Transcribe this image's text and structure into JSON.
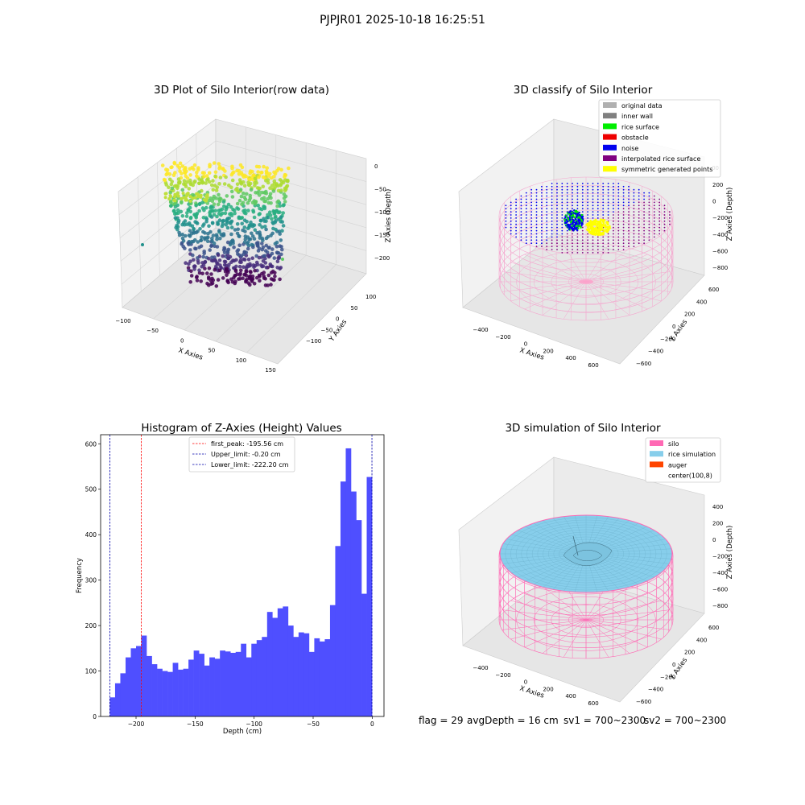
{
  "suptitle": "PJPJR01 2025-10-18 16:25:51",
  "colors": {
    "hist_bar": "#4f4fff",
    "first_peak": "#ff0000",
    "limit": "#0000aa",
    "silo": "#ff69b4",
    "rice": "#87ceeb",
    "auger": "#ff4500",
    "original": "#b0b0b0",
    "wall": "#808080",
    "surface": "#00ee00",
    "obstacle": "#ee0000",
    "noise": "#0000ee",
    "interp": "#800080",
    "sym": "#ffff00"
  },
  "raw_plot": {
    "title": "3D Plot of Silo Interior(row data)",
    "xlabel": "X Axies",
    "ylabel": "Y Axies",
    "zlabel": "Z Axies (Depth)",
    "xticks": [
      "−100",
      "−50",
      "0",
      "50",
      "100",
      "150"
    ],
    "yticks": [
      "−100",
      "−50",
      "0",
      "50",
      "100"
    ],
    "zticks": [
      "0",
      "−50",
      "−100",
      "−150",
      "−200"
    ],
    "colormap": "viridis"
  },
  "classify_plot": {
    "title": "3D classify of Silo Interior",
    "xlabel": "X Axies",
    "ylabel": "Y Axies",
    "zlabel": "Z Axies (Depth)",
    "xticks": [
      "−400",
      "−200",
      "0",
      "200",
      "400",
      "600"
    ],
    "yticks": [
      "−600",
      "−400",
      "−200",
      "0",
      "200",
      "400",
      "600"
    ],
    "zticks": [
      "200",
      "0",
      "−200",
      "−400",
      "−600",
      "−800"
    ],
    "ztick_top": "00",
    "legend": [
      {
        "label": "original data",
        "color": "#b0b0b0"
      },
      {
        "label": "inner wall",
        "color": "#808080"
      },
      {
        "label": "rice surface",
        "color": "#00ee00"
      },
      {
        "label": "obstacle",
        "color": "#ee0000"
      },
      {
        "label": "noise",
        "color": "#0000ee"
      },
      {
        "label": "interpolated rice surface",
        "color": "#800080"
      },
      {
        "label": "symmetric generated points",
        "color": "#ffff00"
      }
    ]
  },
  "sim_plot": {
    "title": "3D simulation of Silo Interior",
    "xlabel": "X Axies",
    "ylabel": "Y Axies",
    "zlabel": "Z Axies (Depth)",
    "xticks": [
      "−400",
      "−200",
      "0",
      "200",
      "400",
      "600"
    ],
    "yticks": [
      "−600",
      "−400",
      "−200",
      "0",
      "200",
      "400",
      "600"
    ],
    "zticks": [
      "400",
      "200",
      "0",
      "−200",
      "−400",
      "−600",
      "−800"
    ],
    "legend": [
      {
        "label": "silo",
        "color": "#ff69b4"
      },
      {
        "label": "rice simulation",
        "color": "#87ceeb"
      },
      {
        "label": "auger",
        "color": "#ff4500"
      },
      {
        "label": "center(100,8)",
        "color": ""
      }
    ]
  },
  "status": {
    "flag": "flag = 29",
    "avg_depth": "avgDepth = 16 cm",
    "sv1": "sv1 = 700~2300",
    "sv2": "sv2 = 700~2300"
  },
  "chart_data": [
    {
      "type": "bar",
      "title": "Histogram of Z-Axies (Height) Values",
      "xlabel": "Depth (cm)",
      "ylabel": "Frequency",
      "xlim": [
        -230,
        10
      ],
      "ylim": [
        0,
        620
      ],
      "xticks": [
        -200,
        -150,
        -100,
        -50,
        0
      ],
      "yticks": [
        0,
        100,
        200,
        300,
        400,
        500,
        600
      ],
      "bin_start": -222.2,
      "bin_width": 4.44,
      "values": [
        42,
        73,
        95,
        130,
        150,
        155,
        178,
        133,
        115,
        105,
        100,
        98,
        118,
        103,
        105,
        125,
        145,
        138,
        112,
        130,
        127,
        145,
        143,
        140,
        142,
        160,
        130,
        160,
        168,
        175,
        230,
        217,
        238,
        242,
        200,
        175,
        185,
        183,
        142,
        172,
        165,
        170,
        245,
        375,
        517,
        590,
        495,
        432,
        270,
        527
      ],
      "vlines": [
        {
          "name": "first_peak: -195.56 cm",
          "x": -195.56,
          "color": "#ff0000"
        },
        {
          "name": "Upper_limit: -0.20 cm",
          "x": -0.2,
          "color": "#0000aa"
        },
        {
          "name": "Lower_limit: -222.20 cm",
          "x": -222.2,
          "color": "#0000aa"
        }
      ],
      "legend_position": "upper center"
    }
  ]
}
